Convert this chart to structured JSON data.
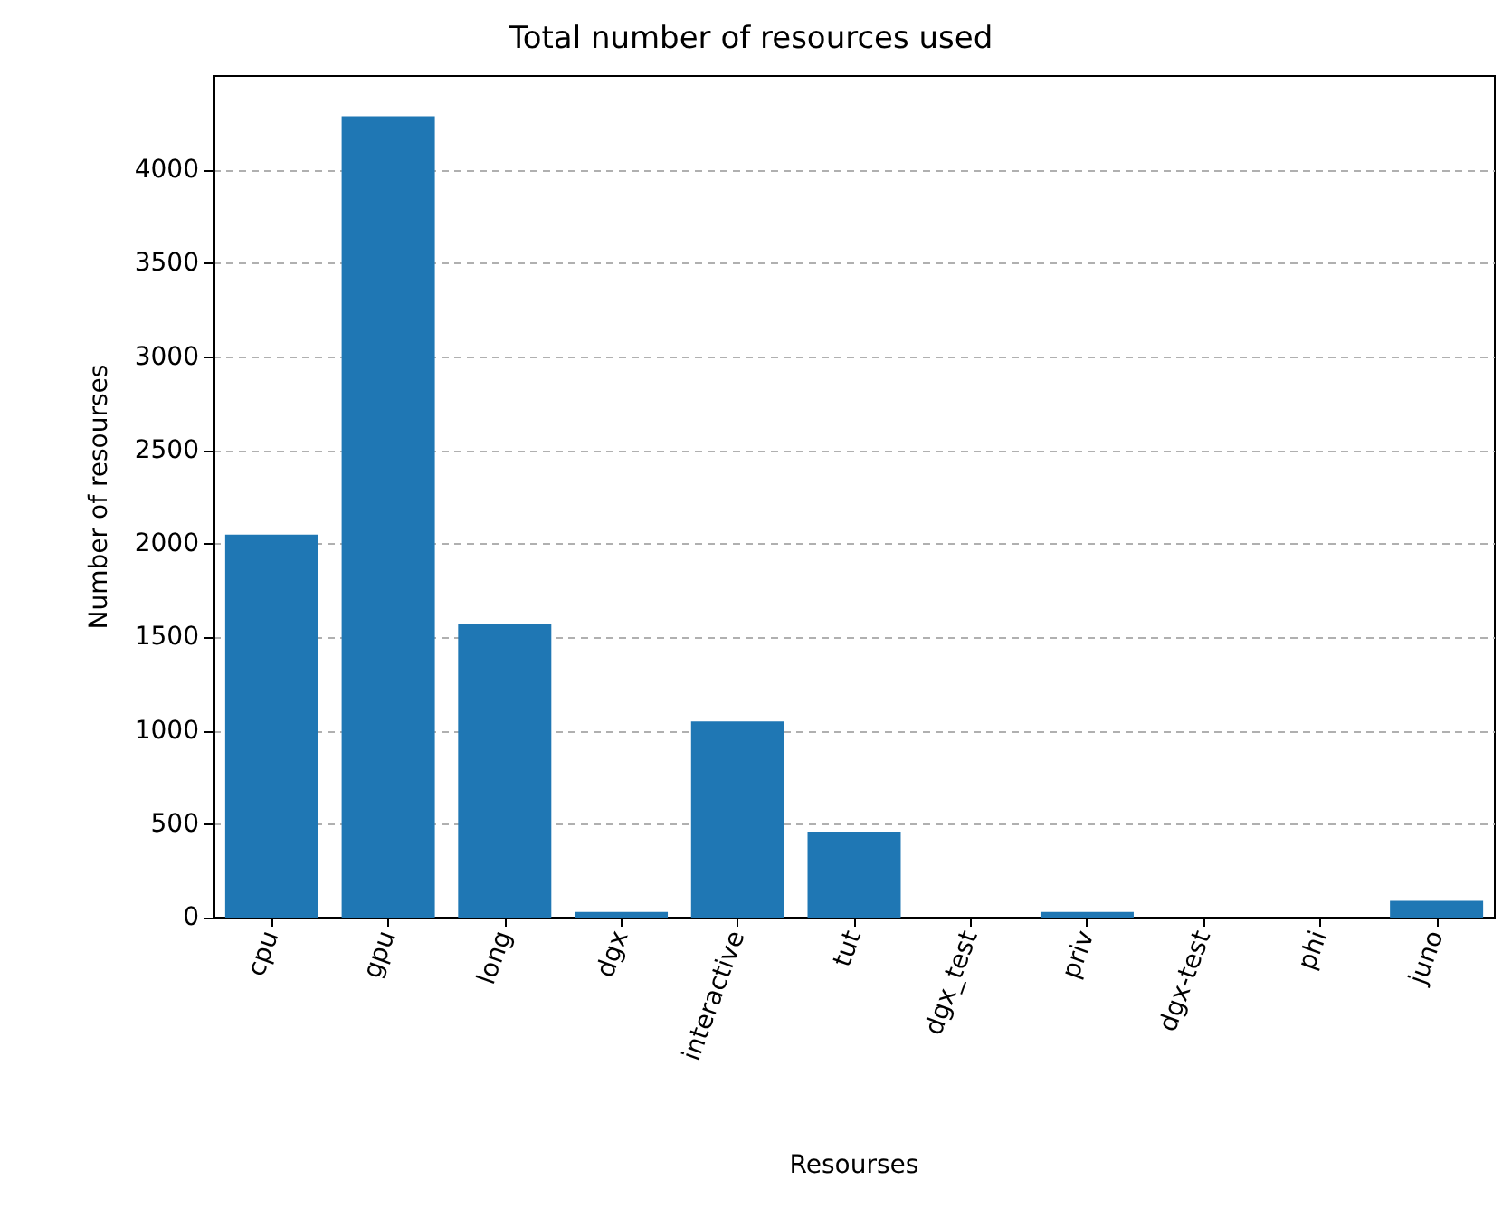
{
  "chart_data": {
    "type": "bar",
    "title": "Total number of resources used",
    "xlabel": "Resourses",
    "ylabel": "Number of resourses",
    "categories": [
      "cpu",
      "gpu",
      "long",
      "dgx",
      "interactive",
      "tut",
      "dgx_test",
      "priv",
      "dgx-test",
      "phi",
      "juno"
    ],
    "values": [
      2050,
      4290,
      1570,
      30,
      1050,
      460,
      0,
      30,
      0,
      0,
      90
    ],
    "color": "#1f77b4",
    "ylim": [
      0,
      4505
    ],
    "yticks": [
      0,
      500,
      1000,
      1500,
      2000,
      2500,
      3000,
      3500,
      4000
    ],
    "grid": "y"
  }
}
